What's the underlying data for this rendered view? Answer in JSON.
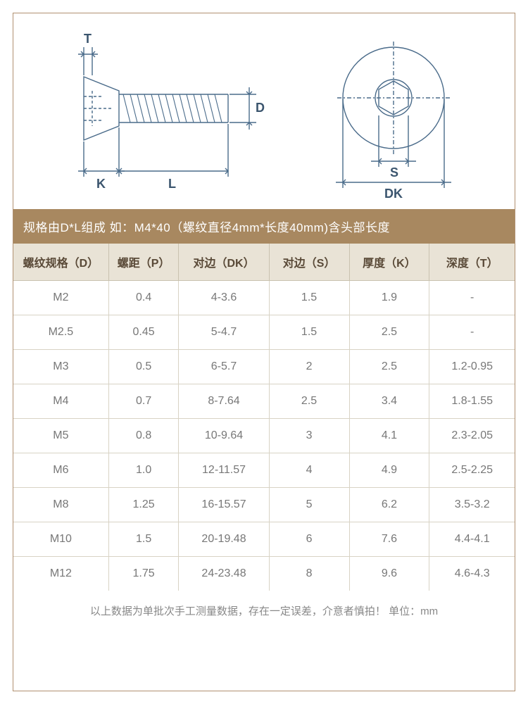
{
  "colors": {
    "frame_border": "#b09070",
    "banner_bg": "#a88860",
    "banner_text": "#ffffff",
    "header_bg": "#e9e3d6",
    "header_text": "#5a4a38",
    "cell_text": "#777777",
    "grid_line": "#d8d3c5",
    "note_text": "#888888",
    "diagram_stroke": "#4a6b8a",
    "dim_stroke": "#4a6b8a"
  },
  "diagram": {
    "labels": {
      "T": "T",
      "D": "D",
      "K": "K",
      "L": "L",
      "S": "S",
      "DK": "DK"
    },
    "label_fontsize": 18,
    "label_color": "#3b556e"
  },
  "banner_text": "规格由D*L组成   如：M4*40（螺纹直径4mm*长度40mm)含头部长度",
  "table": {
    "columns": [
      "螺纹规格（D）",
      "螺距（P）",
      "对边（DK）",
      "对边（S）",
      "厚度（K）",
      "深度（T）"
    ],
    "col_widths_pct": [
      19,
      14,
      18,
      16,
      16,
      17
    ],
    "rows": [
      [
        "M2",
        "0.4",
        "4-3.6",
        "1.5",
        "1.9",
        "-"
      ],
      [
        "M2.5",
        "0.45",
        "5-4.7",
        "1.5",
        "2.5",
        "-"
      ],
      [
        "M3",
        "0.5",
        "6-5.7",
        "2",
        "2.5",
        "1.2-0.95"
      ],
      [
        "M4",
        "0.7",
        "8-7.64",
        "2.5",
        "3.4",
        "1.8-1.55"
      ],
      [
        "M5",
        "0.8",
        "10-9.64",
        "3",
        "4.1",
        "2.3-2.05"
      ],
      [
        "M6",
        "1.0",
        "12-11.57",
        "4",
        "4.9",
        "2.5-2.25"
      ],
      [
        "M8",
        "1.25",
        "16-15.57",
        "5",
        "6.2",
        "3.5-3.2"
      ],
      [
        "M10",
        "1.5",
        "20-19.48",
        "6",
        "7.6",
        "4.4-4.1"
      ],
      [
        "M12",
        "1.75",
        "24-23.48",
        "8",
        "9.6",
        "4.6-4.3"
      ]
    ]
  },
  "note": "以上数据为单批次手工测量数据，存在一定误差，介意者慎拍！  单位：mm"
}
